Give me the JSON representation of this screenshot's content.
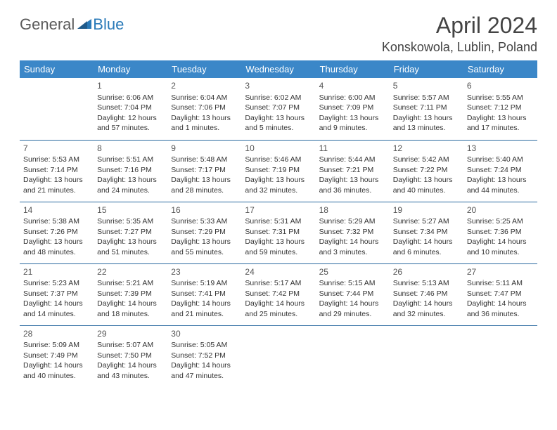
{
  "logo": {
    "general": "General",
    "blue": "Blue"
  },
  "title": "April 2024",
  "location": "Konskowola, Lublin, Poland",
  "colors": {
    "header_bg": "#3b87c8",
    "header_text": "#ffffff",
    "rule": "#2a6aa0",
    "logo_gray": "#5a5a5a",
    "logo_blue": "#2a7ab8",
    "body_text": "#333333",
    "background": "#ffffff"
  },
  "weekdays": [
    "Sunday",
    "Monday",
    "Tuesday",
    "Wednesday",
    "Thursday",
    "Friday",
    "Saturday"
  ],
  "weeks": [
    [
      null,
      {
        "n": "1",
        "sr": "6:06 AM",
        "ss": "7:04 PM",
        "dl": "12 hours and 57 minutes."
      },
      {
        "n": "2",
        "sr": "6:04 AM",
        "ss": "7:06 PM",
        "dl": "13 hours and 1 minutes."
      },
      {
        "n": "3",
        "sr": "6:02 AM",
        "ss": "7:07 PM",
        "dl": "13 hours and 5 minutes."
      },
      {
        "n": "4",
        "sr": "6:00 AM",
        "ss": "7:09 PM",
        "dl": "13 hours and 9 minutes."
      },
      {
        "n": "5",
        "sr": "5:57 AM",
        "ss": "7:11 PM",
        "dl": "13 hours and 13 minutes."
      },
      {
        "n": "6",
        "sr": "5:55 AM",
        "ss": "7:12 PM",
        "dl": "13 hours and 17 minutes."
      }
    ],
    [
      {
        "n": "7",
        "sr": "5:53 AM",
        "ss": "7:14 PM",
        "dl": "13 hours and 21 minutes."
      },
      {
        "n": "8",
        "sr": "5:51 AM",
        "ss": "7:16 PM",
        "dl": "13 hours and 24 minutes."
      },
      {
        "n": "9",
        "sr": "5:48 AM",
        "ss": "7:17 PM",
        "dl": "13 hours and 28 minutes."
      },
      {
        "n": "10",
        "sr": "5:46 AM",
        "ss": "7:19 PM",
        "dl": "13 hours and 32 minutes."
      },
      {
        "n": "11",
        "sr": "5:44 AM",
        "ss": "7:21 PM",
        "dl": "13 hours and 36 minutes."
      },
      {
        "n": "12",
        "sr": "5:42 AM",
        "ss": "7:22 PM",
        "dl": "13 hours and 40 minutes."
      },
      {
        "n": "13",
        "sr": "5:40 AM",
        "ss": "7:24 PM",
        "dl": "13 hours and 44 minutes."
      }
    ],
    [
      {
        "n": "14",
        "sr": "5:38 AM",
        "ss": "7:26 PM",
        "dl": "13 hours and 48 minutes."
      },
      {
        "n": "15",
        "sr": "5:35 AM",
        "ss": "7:27 PM",
        "dl": "13 hours and 51 minutes."
      },
      {
        "n": "16",
        "sr": "5:33 AM",
        "ss": "7:29 PM",
        "dl": "13 hours and 55 minutes."
      },
      {
        "n": "17",
        "sr": "5:31 AM",
        "ss": "7:31 PM",
        "dl": "13 hours and 59 minutes."
      },
      {
        "n": "18",
        "sr": "5:29 AM",
        "ss": "7:32 PM",
        "dl": "14 hours and 3 minutes."
      },
      {
        "n": "19",
        "sr": "5:27 AM",
        "ss": "7:34 PM",
        "dl": "14 hours and 6 minutes."
      },
      {
        "n": "20",
        "sr": "5:25 AM",
        "ss": "7:36 PM",
        "dl": "14 hours and 10 minutes."
      }
    ],
    [
      {
        "n": "21",
        "sr": "5:23 AM",
        "ss": "7:37 PM",
        "dl": "14 hours and 14 minutes."
      },
      {
        "n": "22",
        "sr": "5:21 AM",
        "ss": "7:39 PM",
        "dl": "14 hours and 18 minutes."
      },
      {
        "n": "23",
        "sr": "5:19 AM",
        "ss": "7:41 PM",
        "dl": "14 hours and 21 minutes."
      },
      {
        "n": "24",
        "sr": "5:17 AM",
        "ss": "7:42 PM",
        "dl": "14 hours and 25 minutes."
      },
      {
        "n": "25",
        "sr": "5:15 AM",
        "ss": "7:44 PM",
        "dl": "14 hours and 29 minutes."
      },
      {
        "n": "26",
        "sr": "5:13 AM",
        "ss": "7:46 PM",
        "dl": "14 hours and 32 minutes."
      },
      {
        "n": "27",
        "sr": "5:11 AM",
        "ss": "7:47 PM",
        "dl": "14 hours and 36 minutes."
      }
    ],
    [
      {
        "n": "28",
        "sr": "5:09 AM",
        "ss": "7:49 PM",
        "dl": "14 hours and 40 minutes."
      },
      {
        "n": "29",
        "sr": "5:07 AM",
        "ss": "7:50 PM",
        "dl": "14 hours and 43 minutes."
      },
      {
        "n": "30",
        "sr": "5:05 AM",
        "ss": "7:52 PM",
        "dl": "14 hours and 47 minutes."
      },
      null,
      null,
      null,
      null
    ]
  ],
  "labels": {
    "sunrise": "Sunrise:",
    "sunset": "Sunset:",
    "daylight": "Daylight:"
  }
}
